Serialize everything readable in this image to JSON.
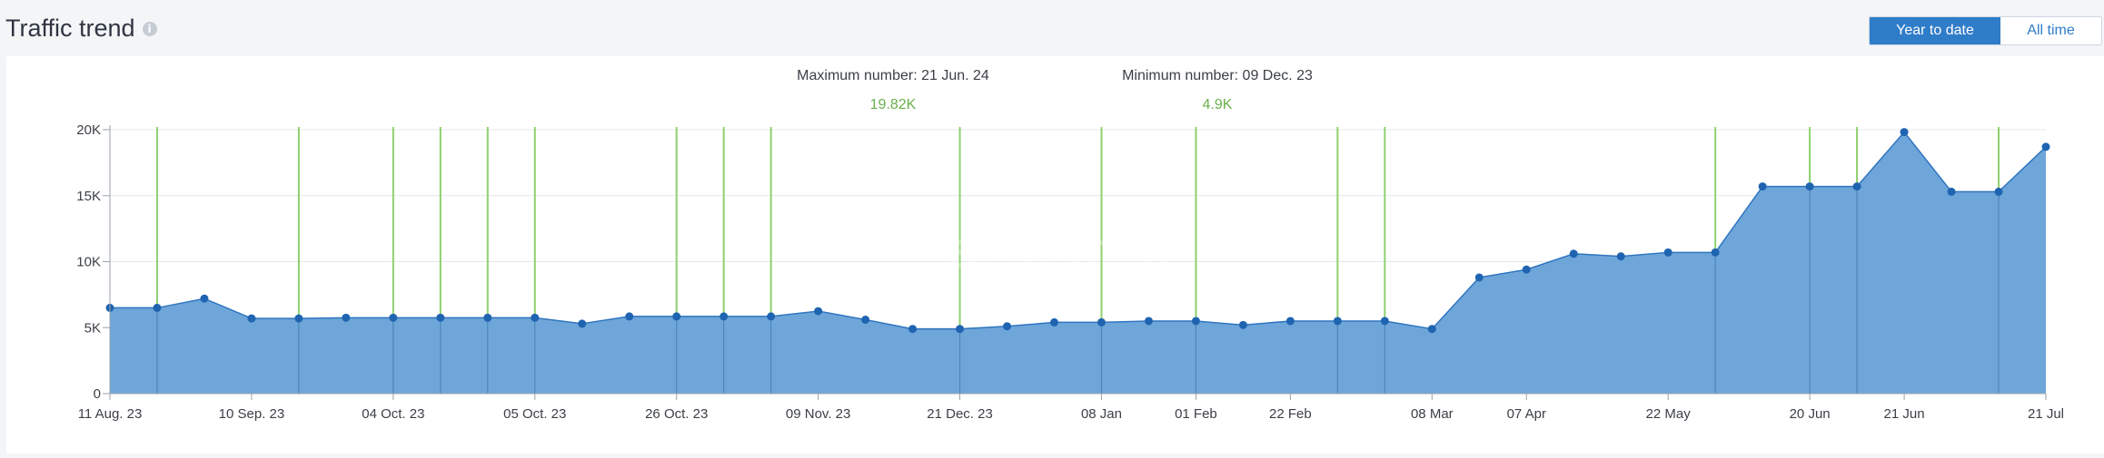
{
  "header": {
    "title": "Traffic trend",
    "info_icon": "info-icon",
    "toggle": {
      "active_label": "Year to date",
      "inactive_label": "All time"
    }
  },
  "summary": {
    "max_label": "Maximum number: 21 Jun. 24",
    "max_value": "19.82K",
    "min_label": "Minimum number: 09 Dec. 23",
    "min_value": "4.9K"
  },
  "watermark": "SERPSTAT",
  "colors": {
    "area_fill": "#6fa6da",
    "line": "#2f75c0",
    "point": "#1f64b0",
    "marker_line": "#8fd06f",
    "value_text": "#6ab04c",
    "accent": "#2f7cc9"
  },
  "chart_data": {
    "type": "area",
    "ylim": [
      0,
      20000
    ],
    "y_ticks": [
      0,
      5000,
      10000,
      15000,
      20000
    ],
    "y_tick_labels": [
      "0",
      "5K",
      "10K",
      "15K",
      "20K"
    ],
    "x_tick_labels": [
      "11 Aug. 23",
      "10 Sep. 23",
      "04 Oct. 23",
      "05 Oct. 23",
      "26 Oct. 23",
      "09 Nov. 23",
      "21 Dec. 23",
      "08 Jan",
      "01 Feb",
      "22 Feb",
      "08 Mar",
      "07 Apr",
      "22 May",
      "20 Jun",
      "21 Jun",
      "21 Jul"
    ],
    "x_tick_index": [
      0,
      3,
      6,
      9,
      12,
      15,
      18,
      21,
      23,
      25,
      28,
      30,
      33,
      36,
      38,
      41
    ],
    "values": [
      6500,
      6500,
      7200,
      5700,
      5700,
      5750,
      5750,
      5750,
      5750,
      5750,
      5300,
      5850,
      5850,
      5850,
      5850,
      6250,
      5600,
      4900,
      4900,
      5100,
      5400,
      5400,
      5500,
      5500,
      5200,
      5500,
      5500,
      5500,
      4900,
      8800,
      9400,
      10600,
      10400,
      10700,
      10700,
      15700,
      15700,
      15700,
      19820,
      15300,
      15300,
      18700
    ],
    "marker_index": [
      1,
      4,
      6,
      7,
      8,
      9,
      12,
      13,
      14,
      18,
      21,
      23,
      26,
      27,
      34,
      36,
      37,
      40
    ],
    "grid": true
  }
}
